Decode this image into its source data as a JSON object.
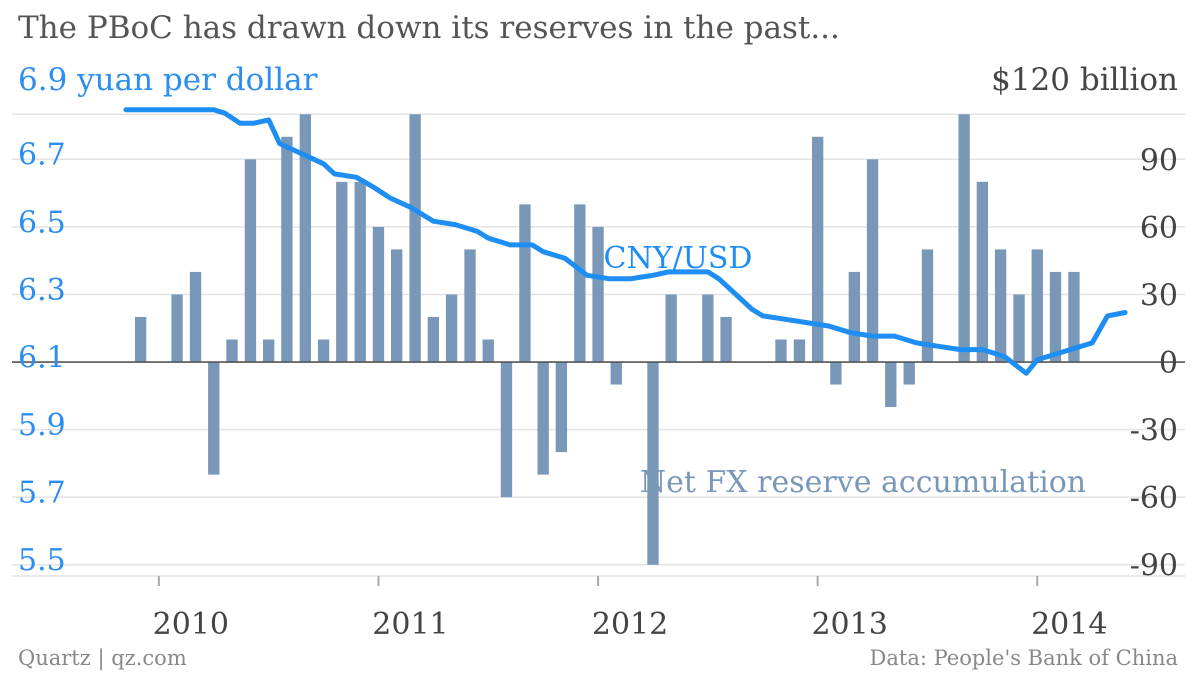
{
  "colors": {
    "line": "#1f8ef2",
    "bars": "#7998b8",
    "left_axis_text": "#2b8ef0",
    "right_axis_text": "#444444",
    "grid": "#e3e3e3",
    "zero_line": "#555555",
    "title_text": "#555555",
    "footer_text": "#888888"
  },
  "header": {
    "title": "The PBoC has drawn down its reserves in the past..."
  },
  "footer": {
    "source_left": "Quartz | qz.com",
    "source_right": "Data: People's Bank of China"
  },
  "chart_data": {
    "type": "bar+line",
    "grid": true,
    "axes": {
      "left_unit_label": "6.9 yuan per dollar",
      "right_unit_label": "$120 billion",
      "left_ticks": [
        "6.7",
        "6.5",
        "6.3",
        "6.1",
        "5.9",
        "5.7",
        "5.5"
      ],
      "left_tick_values": [
        6.7,
        6.5,
        6.3,
        6.1,
        5.9,
        5.7,
        5.5
      ],
      "right_ticks": [
        "90",
        "60",
        "30",
        "0",
        "-30",
        "-60",
        "-90"
      ],
      "right_tick_values": [
        90,
        60,
        30,
        0,
        -30,
        -60,
        -90
      ],
      "left_range": [
        5.45,
        6.85
      ],
      "right_range": [
        -95,
        115
      ],
      "x_ticks": [
        "2010",
        "2011",
        "2012",
        "2013",
        "2014"
      ],
      "x_tick_values": [
        2010,
        2011,
        2012,
        2013,
        2014
      ],
      "x_range": [
        2009.65,
        2014.65
      ]
    },
    "series": [
      {
        "name": "Net FX reserve accumulation",
        "kind": "bar",
        "axis": "right",
        "label": "Net FX reserve accumulation",
        "x": [
          2009.917,
          2010.0,
          2010.083,
          2010.167,
          2010.25,
          2010.333,
          2010.417,
          2010.5,
          2010.583,
          2010.667,
          2010.75,
          2010.833,
          2010.917,
          2011.0,
          2011.083,
          2011.167,
          2011.25,
          2011.333,
          2011.417,
          2011.5,
          2011.583,
          2011.667,
          2011.75,
          2011.833,
          2011.917,
          2012.0,
          2012.083,
          2012.167,
          2012.25,
          2012.333,
          2012.417,
          2012.5,
          2012.583,
          2012.667,
          2012.75,
          2012.833,
          2012.917,
          2013.0,
          2013.083,
          2013.167,
          2013.25,
          2013.333,
          2013.417,
          2013.5,
          2013.583,
          2013.667,
          2013.75,
          2013.833,
          2013.917,
          2014.0,
          2014.083,
          2014.167
        ],
        "values": [
          20,
          0,
          30,
          40,
          -50,
          10,
          90,
          10,
          100,
          110,
          10,
          80,
          80,
          60,
          50,
          110,
          20,
          30,
          50,
          10,
          -60,
          70,
          -50,
          -40,
          70,
          60,
          -10,
          0,
          -90,
          30,
          0,
          30,
          20,
          0,
          0,
          10,
          10,
          100,
          -10,
          40,
          90,
          -20,
          -10,
          50,
          0,
          110,
          80,
          50,
          30,
          50,
          40,
          40
        ]
      },
      {
        "name": "CNY/USD",
        "kind": "line",
        "axis": "left",
        "label": "CNY/USD",
        "x": [
          2009.85,
          2010.0,
          2010.15,
          2010.25,
          2010.3,
          2010.37,
          2010.43,
          2010.5,
          2010.55,
          2010.65,
          2010.75,
          2010.8,
          2010.9,
          2010.98,
          2011.05,
          2011.15,
          2011.25,
          2011.35,
          2011.45,
          2011.5,
          2011.6,
          2011.7,
          2011.75,
          2011.85,
          2011.95,
          2012.05,
          2012.15,
          2012.25,
          2012.32,
          2012.42,
          2012.5,
          2012.55,
          2012.6,
          2012.65,
          2012.7,
          2012.75,
          2012.85,
          2012.95,
          2013.05,
          2013.15,
          2013.25,
          2013.35,
          2013.45,
          2013.55,
          2013.65,
          2013.75,
          2013.85,
          2013.95,
          2014.0,
          2014.05,
          2014.15,
          2014.25,
          2014.32,
          2014.4
        ],
        "values": [
          6.83,
          6.83,
          6.83,
          6.83,
          6.82,
          6.79,
          6.79,
          6.8,
          6.73,
          6.7,
          6.67,
          6.64,
          6.63,
          6.6,
          6.57,
          6.54,
          6.5,
          6.49,
          6.47,
          6.45,
          6.43,
          6.43,
          6.41,
          6.39,
          6.34,
          6.33,
          6.33,
          6.34,
          6.35,
          6.35,
          6.35,
          6.33,
          6.3,
          6.27,
          6.24,
          6.22,
          6.21,
          6.2,
          6.19,
          6.17,
          6.16,
          6.16,
          6.14,
          6.13,
          6.12,
          6.12,
          6.1,
          6.05,
          6.09,
          6.1,
          6.12,
          6.14,
          6.22,
          6.23
        ]
      }
    ]
  }
}
